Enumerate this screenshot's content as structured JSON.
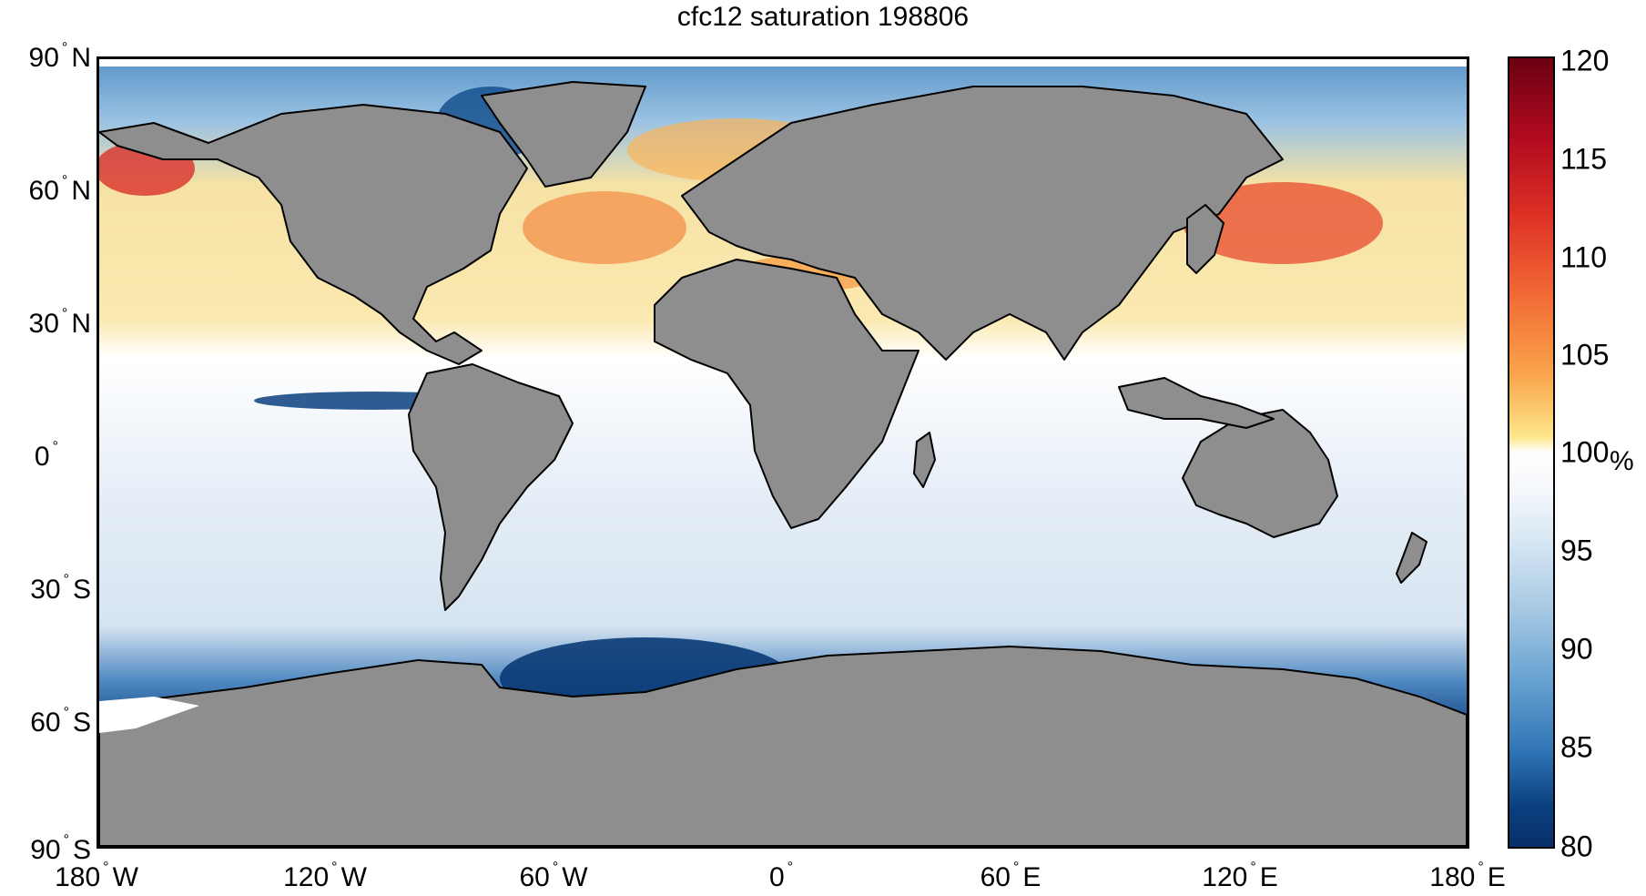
{
  "title": "cfc12 saturation 198806",
  "lat_labels": [
    {
      "deg": "90",
      "hemi": "N"
    },
    {
      "deg": "60",
      "hemi": "N"
    },
    {
      "deg": "30",
      "hemi": "N"
    },
    {
      "deg": "0",
      "hemi": ""
    },
    {
      "deg": "30",
      "hemi": "S"
    },
    {
      "deg": "60",
      "hemi": "S"
    },
    {
      "deg": "90",
      "hemi": "S"
    }
  ],
  "lon_labels": [
    {
      "deg": "180",
      "hemi": "W"
    },
    {
      "deg": "120",
      "hemi": "W"
    },
    {
      "deg": "60",
      "hemi": "W"
    },
    {
      "deg": "0",
      "hemi": ""
    },
    {
      "deg": "60",
      "hemi": "E"
    },
    {
      "deg": "120",
      "hemi": "E"
    },
    {
      "deg": "180",
      "hemi": "E"
    }
  ],
  "colorbar": {
    "ticks": [
      "120",
      "115",
      "110",
      "105",
      "100",
      "95",
      "90",
      "85",
      "80"
    ],
    "unit": "%",
    "min": 80,
    "max": 120
  },
  "colors": {
    "land": "#8e8e8e",
    "supersaturated_max": "#6b0011",
    "saturated": "#ffffff",
    "undersaturated_min": "#08306b"
  }
}
